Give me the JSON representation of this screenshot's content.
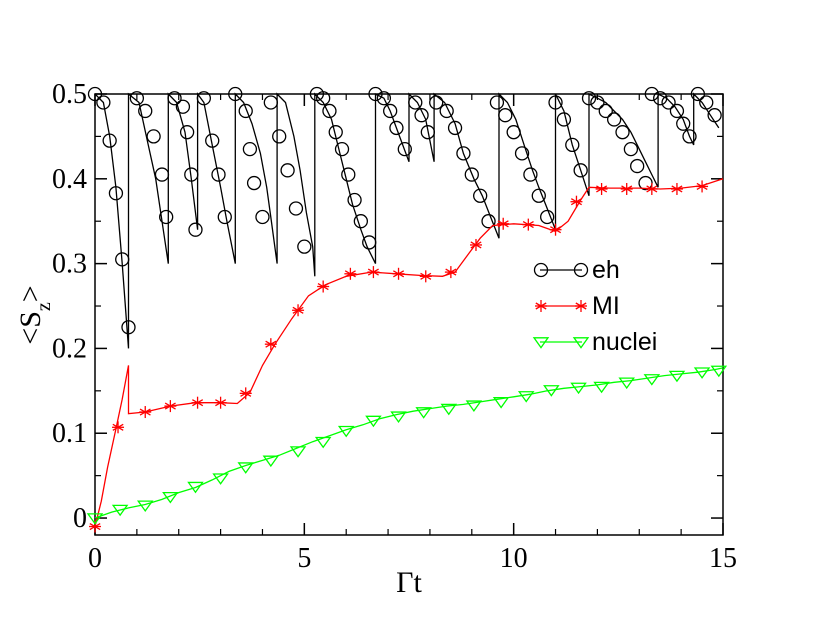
{
  "chart_data": {
    "type": "line",
    "title": "",
    "xlabel": "Γt",
    "ylabel": "<S",
    "ylabel_sub": "z",
    "ylabel_close": ">",
    "xlim": [
      0,
      15
    ],
    "ylim": [
      -0.02,
      0.5
    ],
    "x_ticks": [
      0,
      5,
      10,
      15
    ],
    "y_ticks": [
      0,
      0.1,
      0.2,
      0.3,
      0.4,
      0.5
    ],
    "x_tick_labels": [
      "0",
      "5",
      "10",
      "15"
    ],
    "y_tick_labels": [
      "0",
      "0.1",
      "0.2",
      "0.3",
      "0.4",
      "0.5"
    ],
    "grid": false,
    "legend_position": "center-right",
    "series": [
      {
        "name": "eh",
        "color": "#000000",
        "marker": "circle",
        "line": [
          [
            0,
            0.5
          ],
          [
            0.2,
            0.49
          ],
          [
            0.35,
            0.45
          ],
          [
            0.5,
            0.39
          ],
          [
            0.65,
            0.3
          ],
          [
            0.8,
            0.2
          ],
          [
            0.8,
            0.5
          ],
          [
            1.05,
            0.49
          ],
          [
            1.25,
            0.445
          ],
          [
            1.45,
            0.4
          ],
          [
            1.6,
            0.35
          ],
          [
            1.75,
            0.3
          ],
          [
            1.75,
            0.5
          ],
          [
            1.95,
            0.49
          ],
          [
            2.15,
            0.455
          ],
          [
            2.3,
            0.4
          ],
          [
            2.45,
            0.34
          ],
          [
            2.45,
            0.5
          ],
          [
            2.6,
            0.49
          ],
          [
            2.8,
            0.44
          ],
          [
            3.0,
            0.39
          ],
          [
            3.15,
            0.35
          ],
          [
            3.35,
            0.3
          ],
          [
            3.35,
            0.5
          ],
          [
            3.55,
            0.49
          ],
          [
            3.75,
            0.465
          ],
          [
            3.95,
            0.43
          ],
          [
            4.1,
            0.39
          ],
          [
            4.2,
            0.355
          ],
          [
            4.35,
            0.3
          ],
          [
            4.35,
            0.5
          ],
          [
            4.55,
            0.49
          ],
          [
            4.75,
            0.45
          ],
          [
            4.9,
            0.41
          ],
          [
            5.05,
            0.36
          ],
          [
            5.2,
            0.32
          ],
          [
            5.25,
            0.285
          ],
          [
            5.25,
            0.5
          ],
          [
            5.45,
            0.49
          ],
          [
            5.65,
            0.47
          ],
          [
            5.85,
            0.43
          ],
          [
            6.0,
            0.4
          ],
          [
            6.15,
            0.37
          ],
          [
            6.35,
            0.34
          ],
          [
            6.5,
            0.32
          ],
          [
            6.7,
            0.3
          ],
          [
            6.7,
            0.5
          ],
          [
            6.9,
            0.495
          ],
          [
            7.05,
            0.48
          ],
          [
            7.2,
            0.46
          ],
          [
            7.35,
            0.44
          ],
          [
            7.5,
            0.42
          ],
          [
            7.5,
            0.5
          ],
          [
            7.7,
            0.49
          ],
          [
            7.9,
            0.47
          ],
          [
            8.0,
            0.445
          ],
          [
            8.1,
            0.42
          ],
          [
            8.1,
            0.5
          ],
          [
            8.35,
            0.49
          ],
          [
            8.6,
            0.465
          ],
          [
            8.8,
            0.43
          ],
          [
            9.05,
            0.4
          ],
          [
            9.25,
            0.38
          ],
          [
            9.45,
            0.355
          ],
          [
            9.65,
            0.33
          ],
          [
            9.65,
            0.5
          ],
          [
            9.85,
            0.49
          ],
          [
            10.05,
            0.47
          ],
          [
            10.25,
            0.44
          ],
          [
            10.45,
            0.41
          ],
          [
            10.6,
            0.39
          ],
          [
            10.8,
            0.365
          ],
          [
            11.0,
            0.34
          ],
          [
            11.0,
            0.5
          ],
          [
            11.2,
            0.48
          ],
          [
            11.4,
            0.44
          ],
          [
            11.6,
            0.41
          ],
          [
            11.8,
            0.38
          ],
          [
            11.8,
            0.5
          ],
          [
            12.0,
            0.495
          ],
          [
            12.2,
            0.49
          ],
          [
            12.4,
            0.48
          ],
          [
            12.6,
            0.47
          ],
          [
            12.8,
            0.455
          ],
          [
            12.95,
            0.44
          ],
          [
            13.15,
            0.42
          ],
          [
            13.3,
            0.405
          ],
          [
            13.45,
            0.39
          ],
          [
            13.45,
            0.5
          ],
          [
            13.65,
            0.495
          ],
          [
            13.85,
            0.485
          ],
          [
            14.05,
            0.47
          ],
          [
            14.2,
            0.45
          ],
          [
            14.3,
            0.44
          ],
          [
            14.3,
            0.5
          ],
          [
            14.5,
            0.49
          ],
          [
            14.7,
            0.475
          ],
          [
            14.9,
            0.46
          ]
        ],
        "points": [
          [
            0.0,
            0.5
          ],
          [
            0.2,
            0.49
          ],
          [
            0.35,
            0.445
          ],
          [
            0.5,
            0.383
          ],
          [
            0.65,
            0.305
          ],
          [
            0.8,
            0.225
          ],
          [
            1.0,
            0.495
          ],
          [
            1.2,
            0.48
          ],
          [
            1.4,
            0.45
          ],
          [
            1.6,
            0.405
          ],
          [
            1.7,
            0.355
          ],
          [
            1.9,
            0.495
          ],
          [
            2.1,
            0.485
          ],
          [
            2.2,
            0.455
          ],
          [
            2.3,
            0.405
          ],
          [
            2.4,
            0.34
          ],
          [
            2.6,
            0.495
          ],
          [
            2.8,
            0.445
          ],
          [
            2.95,
            0.405
          ],
          [
            3.1,
            0.355
          ],
          [
            3.35,
            0.5
          ],
          [
            3.6,
            0.48
          ],
          [
            3.7,
            0.435
          ],
          [
            3.8,
            0.395
          ],
          [
            4.0,
            0.355
          ],
          [
            4.2,
            0.49
          ],
          [
            4.4,
            0.45
          ],
          [
            4.6,
            0.41
          ],
          [
            4.8,
            0.365
          ],
          [
            5.0,
            0.32
          ],
          [
            5.3,
            0.5
          ],
          [
            5.45,
            0.495
          ],
          [
            5.6,
            0.48
          ],
          [
            5.75,
            0.455
          ],
          [
            5.9,
            0.435
          ],
          [
            6.05,
            0.405
          ],
          [
            6.2,
            0.375
          ],
          [
            6.35,
            0.35
          ],
          [
            6.55,
            0.325
          ],
          [
            6.7,
            0.5
          ],
          [
            6.9,
            0.495
          ],
          [
            7.05,
            0.48
          ],
          [
            7.2,
            0.46
          ],
          [
            7.4,
            0.435
          ],
          [
            7.65,
            0.49
          ],
          [
            7.8,
            0.475
          ],
          [
            7.95,
            0.455
          ],
          [
            8.15,
            0.49
          ],
          [
            8.4,
            0.48
          ],
          [
            8.6,
            0.46
          ],
          [
            8.8,
            0.43
          ],
          [
            9.0,
            0.405
          ],
          [
            9.2,
            0.38
          ],
          [
            9.4,
            0.35
          ],
          [
            9.6,
            0.49
          ],
          [
            9.8,
            0.475
          ],
          [
            10.0,
            0.455
          ],
          [
            10.2,
            0.43
          ],
          [
            10.4,
            0.405
          ],
          [
            10.6,
            0.38
          ],
          [
            10.8,
            0.355
          ],
          [
            11.0,
            0.49
          ],
          [
            11.2,
            0.47
          ],
          [
            11.4,
            0.44
          ],
          [
            11.6,
            0.41
          ],
          [
            11.8,
            0.495
          ],
          [
            12.0,
            0.49
          ],
          [
            12.2,
            0.48
          ],
          [
            12.4,
            0.47
          ],
          [
            12.6,
            0.455
          ],
          [
            12.8,
            0.435
          ],
          [
            12.95,
            0.415
          ],
          [
            13.15,
            0.395
          ],
          [
            13.3,
            0.5
          ],
          [
            13.5,
            0.495
          ],
          [
            13.7,
            0.49
          ],
          [
            13.9,
            0.48
          ],
          [
            14.05,
            0.465
          ],
          [
            14.2,
            0.45
          ],
          [
            14.4,
            0.5
          ],
          [
            14.6,
            0.49
          ],
          [
            14.8,
            0.475
          ]
        ]
      },
      {
        "name": "MI",
        "color": "#ff0000",
        "marker": "asterisk",
        "line": [
          [
            0,
            -0.01
          ],
          [
            0.15,
            0.02
          ],
          [
            0.3,
            0.06
          ],
          [
            0.5,
            0.105
          ],
          [
            0.65,
            0.14
          ],
          [
            0.8,
            0.18
          ],
          [
            0.8,
            0.123
          ],
          [
            1.2,
            0.125
          ],
          [
            1.8,
            0.132
          ],
          [
            2.4,
            0.136
          ],
          [
            3.0,
            0.136
          ],
          [
            3.4,
            0.135
          ],
          [
            3.7,
            0.148
          ],
          [
            4.0,
            0.18
          ],
          [
            4.3,
            0.205
          ],
          [
            4.7,
            0.235
          ],
          [
            5.1,
            0.262
          ],
          [
            5.5,
            0.275
          ],
          [
            6.0,
            0.285
          ],
          [
            6.6,
            0.29
          ],
          [
            7.2,
            0.288
          ],
          [
            7.8,
            0.286
          ],
          [
            8.3,
            0.285
          ],
          [
            8.6,
            0.29
          ],
          [
            8.9,
            0.31
          ],
          [
            9.2,
            0.33
          ],
          [
            9.5,
            0.345
          ],
          [
            10.0,
            0.347
          ],
          [
            10.6,
            0.345
          ],
          [
            11.0,
            0.338
          ],
          [
            11.3,
            0.35
          ],
          [
            11.6,
            0.375
          ],
          [
            11.8,
            0.39
          ],
          [
            12.3,
            0.389
          ],
          [
            13.0,
            0.389
          ],
          [
            13.5,
            0.388
          ],
          [
            14.0,
            0.389
          ],
          [
            14.5,
            0.392
          ],
          [
            15.0,
            0.4
          ]
        ],
        "points": [
          [
            0.0,
            -0.01
          ],
          [
            0.55,
            0.107
          ],
          [
            1.2,
            0.125
          ],
          [
            1.8,
            0.132
          ],
          [
            2.45,
            0.136
          ],
          [
            3.0,
            0.136
          ],
          [
            3.6,
            0.147
          ],
          [
            4.2,
            0.205
          ],
          [
            4.85,
            0.245
          ],
          [
            5.45,
            0.273
          ],
          [
            6.1,
            0.288
          ],
          [
            6.65,
            0.29
          ],
          [
            7.25,
            0.288
          ],
          [
            7.9,
            0.285
          ],
          [
            8.5,
            0.29
          ],
          [
            9.1,
            0.322
          ],
          [
            9.75,
            0.347
          ],
          [
            10.35,
            0.346
          ],
          [
            11.0,
            0.34
          ],
          [
            11.5,
            0.373
          ],
          [
            12.1,
            0.388
          ],
          [
            12.7,
            0.388
          ],
          [
            13.3,
            0.388
          ],
          [
            13.9,
            0.388
          ],
          [
            14.5,
            0.391
          ]
        ]
      },
      {
        "name": "nuclei",
        "color": "#00ff00",
        "marker": "triangle-down",
        "line": [
          [
            0,
            0.0
          ],
          [
            0.4,
            0.007
          ],
          [
            0.8,
            0.012
          ],
          [
            1.2,
            0.016
          ],
          [
            1.6,
            0.022
          ],
          [
            2.0,
            0.03
          ],
          [
            2.4,
            0.036
          ],
          [
            2.8,
            0.045
          ],
          [
            3.2,
            0.055
          ],
          [
            3.6,
            0.062
          ],
          [
            4.0,
            0.068
          ],
          [
            4.4,
            0.074
          ],
          [
            4.8,
            0.082
          ],
          [
            5.2,
            0.09
          ],
          [
            5.6,
            0.097
          ],
          [
            6.0,
            0.104
          ],
          [
            6.4,
            0.11
          ],
          [
            6.8,
            0.117
          ],
          [
            7.2,
            0.122
          ],
          [
            7.6,
            0.126
          ],
          [
            8.0,
            0.129
          ],
          [
            8.4,
            0.132
          ],
          [
            8.8,
            0.134
          ],
          [
            9.2,
            0.137
          ],
          [
            9.6,
            0.14
          ],
          [
            10.0,
            0.143
          ],
          [
            10.4,
            0.146
          ],
          [
            10.8,
            0.15
          ],
          [
            11.2,
            0.153
          ],
          [
            11.6,
            0.155
          ],
          [
            12.0,
            0.157
          ],
          [
            12.4,
            0.16
          ],
          [
            12.8,
            0.162
          ],
          [
            13.2,
            0.165
          ],
          [
            13.6,
            0.168
          ],
          [
            14.0,
            0.17
          ],
          [
            14.4,
            0.172
          ],
          [
            14.8,
            0.175
          ],
          [
            15.0,
            0.177
          ]
        ],
        "points": [
          [
            0.0,
            0.0
          ],
          [
            0.6,
            0.01
          ],
          [
            1.2,
            0.015
          ],
          [
            1.8,
            0.025
          ],
          [
            2.4,
            0.037
          ],
          [
            3.0,
            0.047
          ],
          [
            3.6,
            0.06
          ],
          [
            4.2,
            0.068
          ],
          [
            4.85,
            0.079
          ],
          [
            5.45,
            0.09
          ],
          [
            6.0,
            0.103
          ],
          [
            6.65,
            0.115
          ],
          [
            7.25,
            0.12
          ],
          [
            7.85,
            0.125
          ],
          [
            8.45,
            0.129
          ],
          [
            9.05,
            0.133
          ],
          [
            9.7,
            0.137
          ],
          [
            10.3,
            0.144
          ],
          [
            10.9,
            0.151
          ],
          [
            11.55,
            0.154
          ],
          [
            12.1,
            0.155
          ],
          [
            12.7,
            0.16
          ],
          [
            13.3,
            0.164
          ],
          [
            13.9,
            0.168
          ],
          [
            14.5,
            0.172
          ],
          [
            14.9,
            0.174
          ]
        ]
      }
    ]
  }
}
